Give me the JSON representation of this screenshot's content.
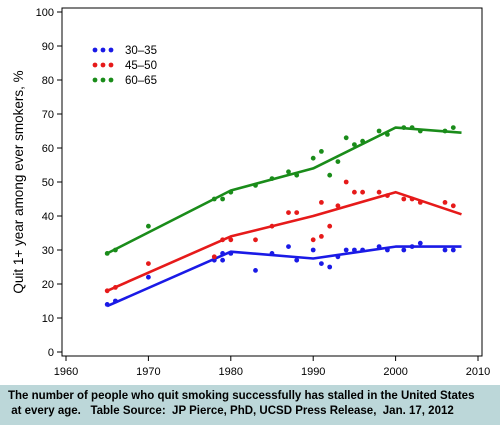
{
  "chart_data": {
    "type": "scatter",
    "ylabel": "Quit 1+  year among ever smokers, %",
    "xlabel": "",
    "xlim": [
      1960,
      2010
    ],
    "ylim": [
      0,
      100
    ],
    "x_ticks": [
      "1960",
      "1970",
      "1980",
      "1990",
      "2000",
      "2010"
    ],
    "y_ticks": [
      "0",
      "10",
      "20",
      "30",
      "40",
      "50",
      "60",
      "70",
      "80",
      "90",
      "100"
    ],
    "legend_position": "top-left",
    "series": [
      {
        "name": "30–35",
        "color": "#1a1ae6",
        "points": [
          [
            1965,
            14
          ],
          [
            1966,
            15
          ],
          [
            1970,
            22
          ],
          [
            1978,
            27
          ],
          [
            1979,
            27
          ],
          [
            1979,
            29
          ],
          [
            1980,
            29
          ],
          [
            1983,
            24
          ],
          [
            1985,
            29
          ],
          [
            1987,
            31
          ],
          [
            1988,
            27
          ],
          [
            1990,
            30
          ],
          [
            1991,
            26
          ],
          [
            1992,
            25
          ],
          [
            1993,
            28
          ],
          [
            1994,
            30
          ],
          [
            1995,
            30
          ],
          [
            1996,
            30
          ],
          [
            1998,
            31
          ],
          [
            1999,
            30
          ],
          [
            2001,
            30
          ],
          [
            2002,
            31
          ],
          [
            2003,
            32
          ],
          [
            2006,
            30
          ],
          [
            2007,
            30
          ]
        ],
        "trend": [
          [
            1965,
            13.5
          ],
          [
            1980,
            29.5
          ],
          [
            1990,
            27.5
          ],
          [
            2000,
            31
          ],
          [
            2008,
            31
          ]
        ]
      },
      {
        "name": "45–50",
        "color": "#e61a1a",
        "points": [
          [
            1965,
            18
          ],
          [
            1966,
            19
          ],
          [
            1970,
            26
          ],
          [
            1978,
            28
          ],
          [
            1979,
            33
          ],
          [
            1980,
            33
          ],
          [
            1983,
            33
          ],
          [
            1985,
            37
          ],
          [
            1987,
            41
          ],
          [
            1988,
            41
          ],
          [
            1990,
            33
          ],
          [
            1991,
            44
          ],
          [
            1991,
            34
          ],
          [
            1992,
            37
          ],
          [
            1993,
            43
          ],
          [
            1994,
            50
          ],
          [
            1995,
            47
          ],
          [
            1996,
            47
          ],
          [
            1998,
            47
          ],
          [
            1999,
            46
          ],
          [
            2001,
            45
          ],
          [
            2002,
            45
          ],
          [
            2003,
            44
          ],
          [
            2006,
            44
          ],
          [
            2007,
            43
          ]
        ],
        "trend": [
          [
            1965,
            18
          ],
          [
            1980,
            34
          ],
          [
            1990,
            40
          ],
          [
            2000,
            47
          ],
          [
            2008,
            40.5
          ]
        ]
      },
      {
        "name": "60–65",
        "color": "#1a8c1a",
        "points": [
          [
            1965,
            29
          ],
          [
            1966,
            30
          ],
          [
            1970,
            37
          ],
          [
            1978,
            45
          ],
          [
            1979,
            45
          ],
          [
            1980,
            47
          ],
          [
            1983,
            49
          ],
          [
            1985,
            51
          ],
          [
            1987,
            53
          ],
          [
            1988,
            52
          ],
          [
            1990,
            57
          ],
          [
            1991,
            59
          ],
          [
            1992,
            52
          ],
          [
            1993,
            56
          ],
          [
            1994,
            63
          ],
          [
            1995,
            61
          ],
          [
            1996,
            62
          ],
          [
            1998,
            65
          ],
          [
            1999,
            64
          ],
          [
            2001,
            66
          ],
          [
            2002,
            66
          ],
          [
            2003,
            65
          ],
          [
            2006,
            65
          ],
          [
            2007,
            66
          ]
        ],
        "trend": [
          [
            1965,
            29
          ],
          [
            1980,
            47.5
          ],
          [
            1990,
            54
          ],
          [
            2000,
            66
          ],
          [
            2008,
            64.5
          ]
        ]
      }
    ]
  },
  "caption": {
    "line1": "The number of people who quit smoking successfully has stalled in the United States",
    "line2": " at every age.   Table Source:  JP Pierce, PhD, UCSD Press Release,  Jan. 17, 2012"
  }
}
